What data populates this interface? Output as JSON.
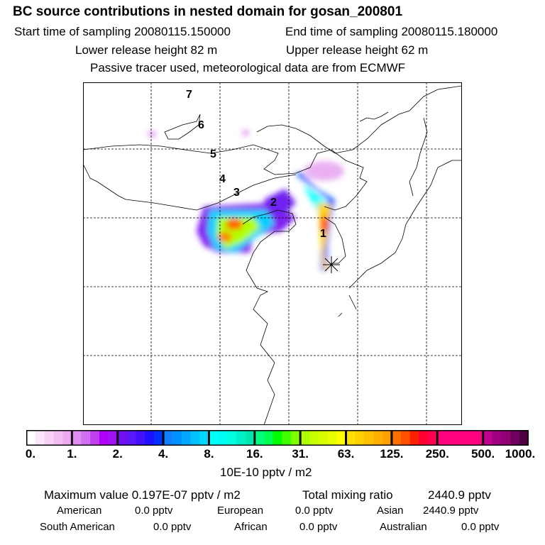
{
  "header": {
    "title": "BC  source contributions in nested domain for gosan_200801",
    "start_label": "Start time of sampling 20080115.150000",
    "end_label": "End time of sampling 20080115.180000",
    "lower_label": "Lower release height   82 m",
    "upper_label": "Upper release height   62 m",
    "note": "Passive tracer used, meteorological data are from ECMWF"
  },
  "chart_data": {
    "type": "heatmap",
    "title": "BC  source contributions in nested domain for gosan_200801",
    "colorbar": {
      "unit": "10E-10 pptv / m2",
      "tick_labels": [
        "0.",
        "1.",
        "2.",
        "4.",
        "8.",
        "16.",
        "31.",
        "63.",
        "125.",
        "250.",
        "500.",
        "1000."
      ],
      "segments": [
        [
          "#ffffff",
          "#fbe6fb",
          "#f6d0f6",
          "#f2bcf3",
          "#eeaaf0"
        ],
        [
          "#e08cf0",
          "#d070f0",
          "#c040f0",
          "#b000f8",
          "#a010f0"
        ],
        [
          "#7010f0",
          "#5a18f8",
          "#4010f8",
          "#2010ff",
          "#0030ff"
        ],
        [
          "#1080ff",
          "#0090ff",
          "#00a8ff",
          "#00c0ff",
          "#00d8ff"
        ],
        [
          "#00ffff",
          "#00fff0",
          "#00ffe0",
          "#00f0c8",
          "#00e8b0"
        ],
        [
          "#00ff80",
          "#00ff50",
          "#00ff00",
          "#40ff00",
          "#80ff00"
        ],
        [
          "#b0ff00",
          "#c8ff00",
          "#d8ff00",
          "#e8ff00",
          "#ffff00"
        ],
        [
          "#ffe000",
          "#ffd000",
          "#ffc000",
          "#ffb000",
          "#ffa000"
        ],
        [
          "#ff7000",
          "#ff5000",
          "#ff2000",
          "#ff0030",
          "#ff0050"
        ],
        [
          "#ff0080",
          "#ff0080",
          "#ff0080",
          "#ff0080",
          "#ff0080"
        ],
        [
          "#c00090",
          "#a00080",
          "#900070",
          "#700060",
          "#500040"
        ]
      ]
    },
    "trajectory_labels": [
      "1",
      "2",
      "3",
      "4",
      "5",
      "6",
      "7"
    ],
    "receptor": "gosan"
  },
  "stats": {
    "max_label": "Maximum value  0.197E-07 pptv / m2",
    "total_label": "Total mixing ratio",
    "total_value": "2440.9 pptv",
    "regions": [
      {
        "name": "American",
        "value": "0.0 pptv"
      },
      {
        "name": "European",
        "value": "0.0 pptv"
      },
      {
        "name": "Asian",
        "value": "2440.9 pptv"
      },
      {
        "name": "South American",
        "value": "0.0 pptv"
      },
      {
        "name": "African",
        "value": "0.0 pptv"
      },
      {
        "name": "Australian",
        "value": "0.0 pptv"
      }
    ]
  }
}
